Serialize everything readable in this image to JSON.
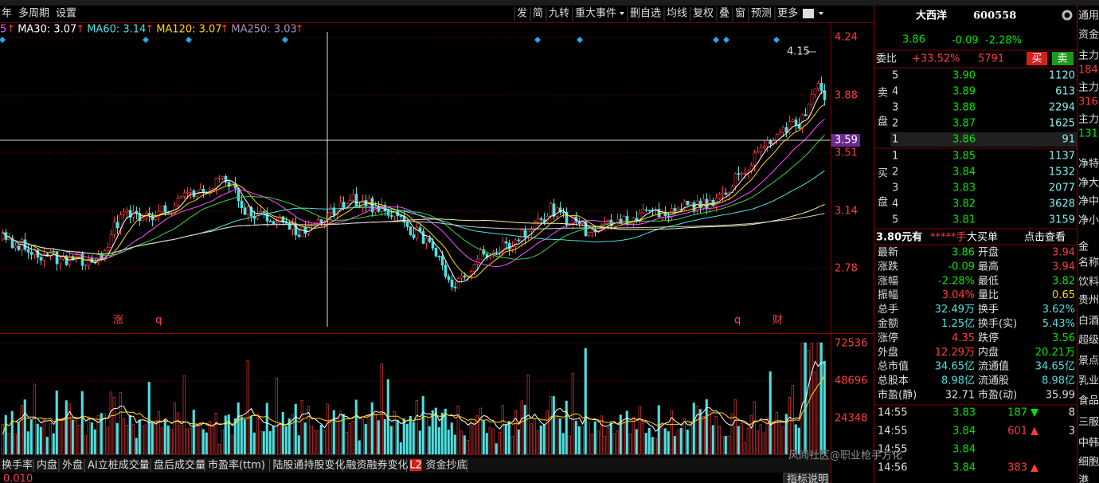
{
  "toolbar": {
    "left": [
      "年",
      "多周期",
      "设置"
    ],
    "right": [
      "发",
      "简",
      "九转",
      "重大事件",
      "删自选",
      "均线",
      "复权",
      "叠",
      "窗",
      "预测",
      "更多"
    ]
  },
  "ma_legend": [
    {
      "text": "5",
      "arrow": "↑"
    },
    {
      "text": "MA30: 3.07",
      "arrow": "↑"
    },
    {
      "text": "MA60: 3.14",
      "arrow": "↑"
    },
    {
      "text": "MA120: 3.07",
      "arrow": "↑"
    },
    {
      "text": "MA250: 3.03",
      "arrow": "↑"
    }
  ],
  "price_axis": [
    "4.24",
    "3.88",
    "3.51",
    "3.14",
    "2.78"
  ],
  "crosshair_price": "3.59",
  "peak_label": "4.15",
  "event_markers": [
    "涨",
    "q",
    "q",
    "财"
  ],
  "volume_axis": [
    "72536",
    "48696",
    "24348"
  ],
  "stock": {
    "name": "大西洋",
    "code": "600558",
    "price": "3.86",
    "change": "-0.09",
    "change_pct": "-2.28%",
    "panel_tab": "通用"
  },
  "order": {
    "weibi_label": "委比",
    "weibi": "+33.52%",
    "weicha": "5791",
    "buy_button": "买",
    "sell_button": "卖",
    "ask_label": [
      "卖",
      "盘"
    ],
    "asks": [
      [
        "5",
        "3.90",
        "1120"
      ],
      [
        "4",
        "3.89",
        "613"
      ],
      [
        "3",
        "3.88",
        "2294"
      ],
      [
        "2",
        "3.87",
        "1625"
      ],
      [
        "1",
        "3.86",
        "91"
      ]
    ],
    "bid_label": [
      "买",
      "盘"
    ],
    "bids": [
      [
        "1",
        "3.85",
        "1137"
      ],
      [
        "2",
        "3.84",
        "1532"
      ],
      [
        "3",
        "3.83",
        "2077"
      ],
      [
        "4",
        "3.82",
        "3628"
      ],
      [
        "5",
        "3.81",
        "3159"
      ]
    ]
  },
  "big_order": [
    "3.80元有",
    "*****手",
    "大买单",
    "点击查看"
  ],
  "stats": [
    [
      "最新",
      "3.86",
      "开盘",
      "3.94"
    ],
    [
      "涨跌",
      "-0.09",
      "最高",
      "3.94"
    ],
    [
      "涨幅",
      "-2.28%",
      "最低",
      "3.82"
    ],
    [
      "振幅",
      "3.04%",
      "量比",
      "0.65"
    ],
    [
      "总手",
      "32.49万",
      "换手",
      "3.62%"
    ],
    [
      "金额",
      "1.25亿",
      "换手(实)",
      "5.43%"
    ],
    [
      "涨停",
      "4.35",
      "跌停",
      "3.56"
    ],
    [
      "外盘",
      "12.29万",
      "内盘",
      "20.21万"
    ],
    [
      "总市值",
      "34.65亿",
      "流通值",
      "34.65亿"
    ],
    [
      "总股本",
      "8.98亿",
      "流通股",
      "8.98亿"
    ],
    [
      "市盈(静)",
      "32.71",
      "市盈(动)",
      "35.99"
    ]
  ],
  "trades": [
    [
      "14:55",
      "3.83",
      "187",
      "8"
    ],
    [
      "14:55",
      "3.84",
      "601",
      "3"
    ],
    [
      "14:55",
      "3.84"
    ],
    [
      "14:56",
      "3.84",
      "383"
    ]
  ],
  "side": [
    "资金",
    "主力",
    "184",
    "主力",
    "316",
    "主力",
    "131",
    "净特",
    "净大",
    "净中",
    "净小",
    "金",
    "名称",
    "饮料",
    "贵州",
    "白酒",
    "超级",
    "景点",
    "乳业",
    "食品",
    "三服",
    "中韩",
    "细胞",
    "港"
  ],
  "tabs": [
    "换手率",
    "内盘",
    "外盘",
    "AI立桩成交量",
    "盘后成交量",
    "市盈率(ttm)",
    "陆股通持股变化",
    "融资融券变化",
    "L2",
    "资金抄底"
  ],
  "footer": {
    "left": "0.010",
    "right": "指标说明"
  },
  "watermark": "风闻社区@职业枪手方化"
}
